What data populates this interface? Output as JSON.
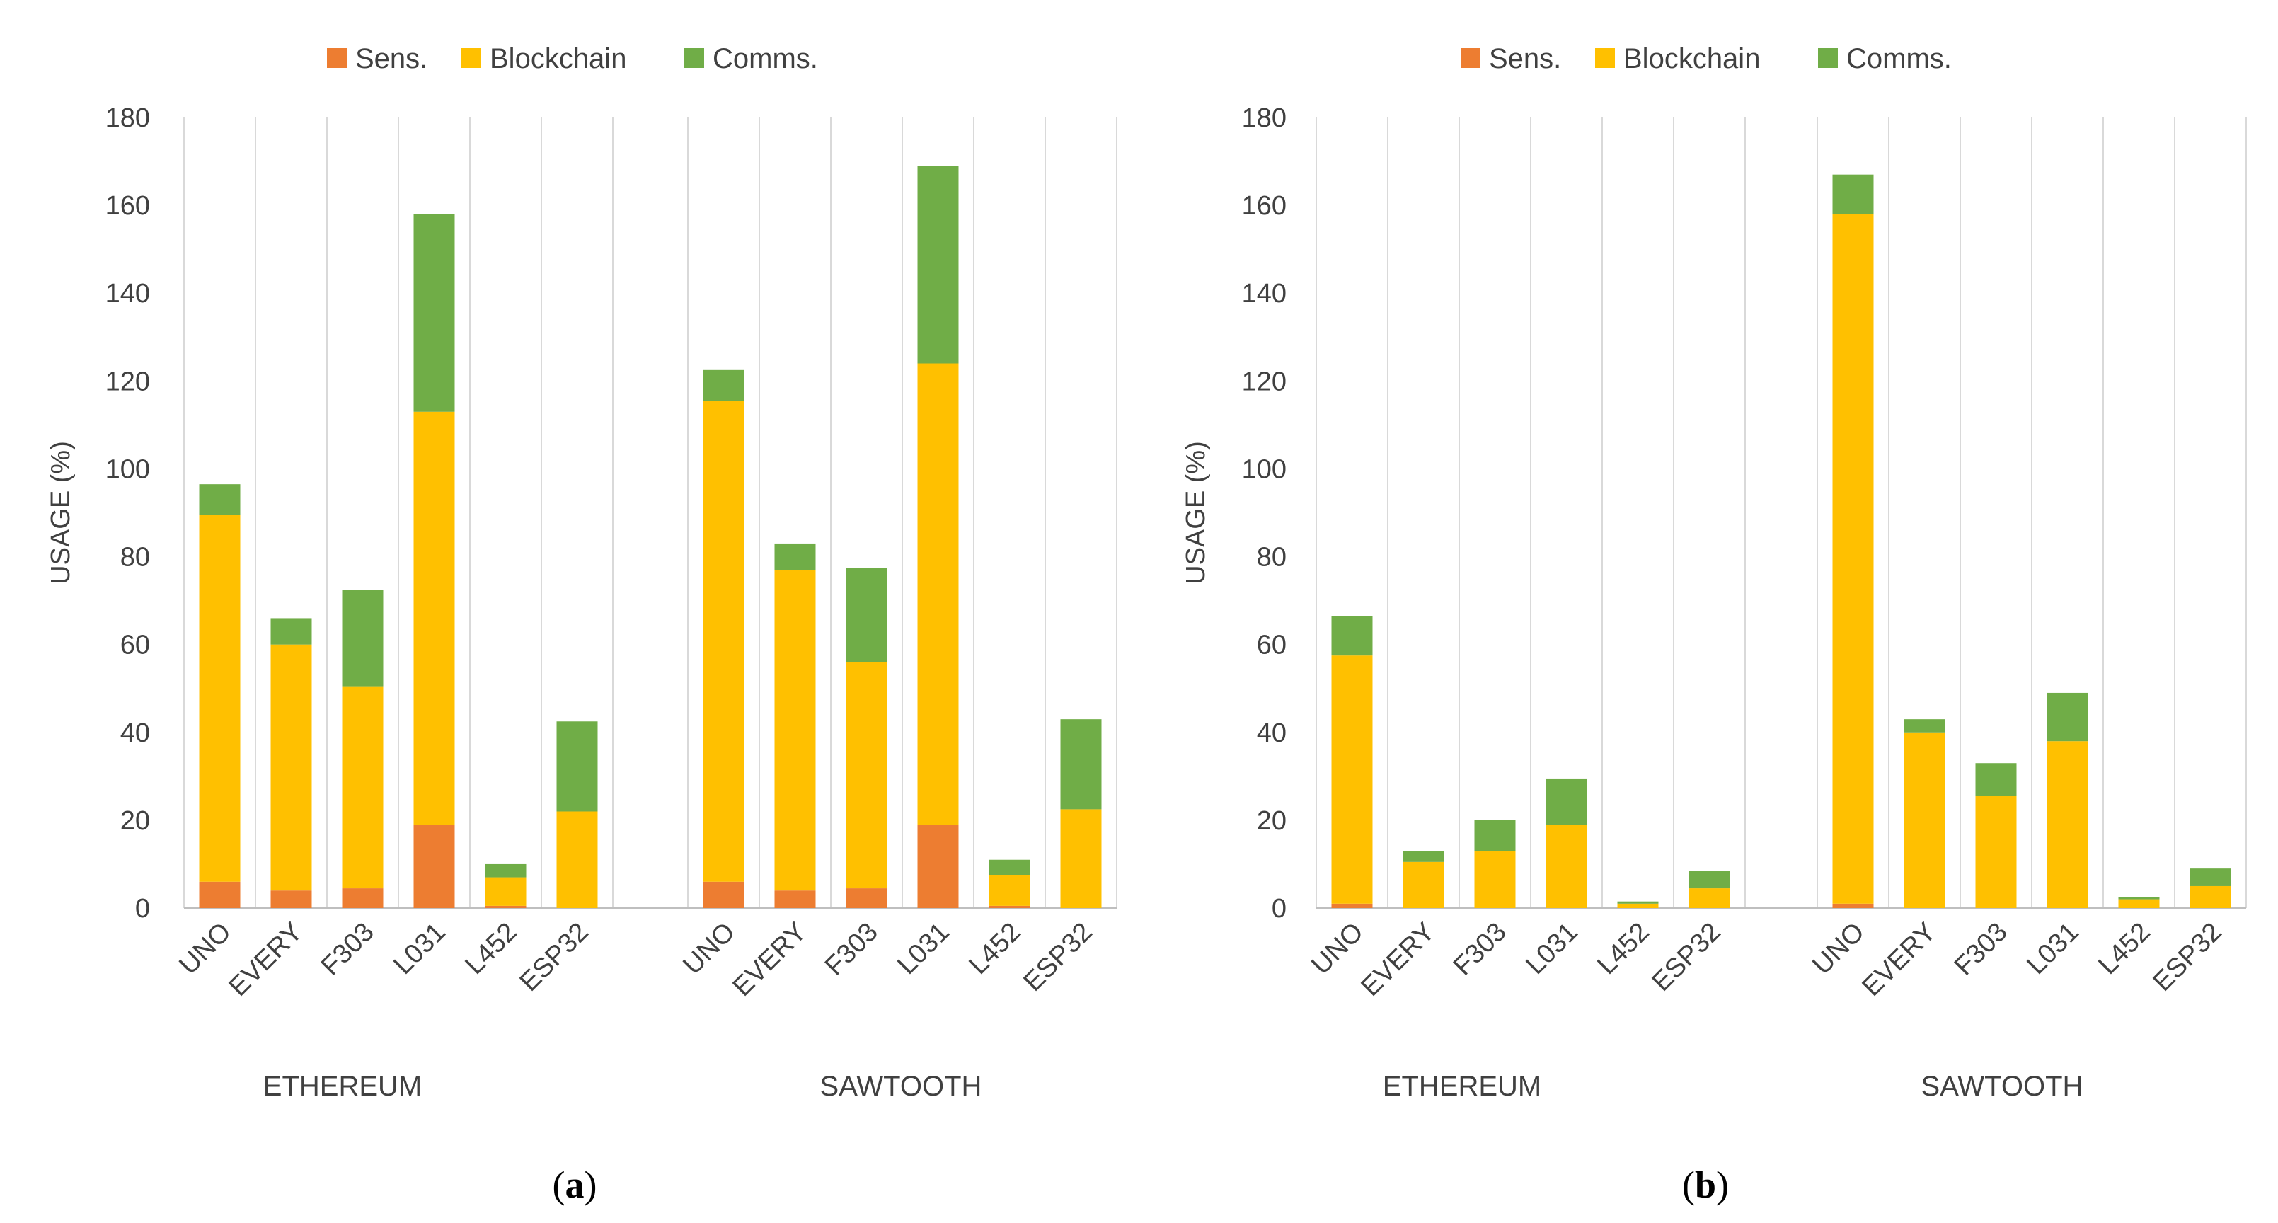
{
  "colors": {
    "sens": "#ED7D31",
    "blockchain": "#FFC000",
    "comms": "#70AD47",
    "grid": "#d9d9d9",
    "axis": "#bfbfbf",
    "text": "#404040"
  },
  "chart_data": [
    {
      "panel": "a",
      "caption_letter": "a",
      "type": "bar",
      "stacked": true,
      "ylabel": "USAGE (%)",
      "ylim": [
        0,
        180
      ],
      "yticks": [
        0,
        20,
        40,
        60,
        80,
        100,
        120,
        140,
        160,
        180
      ],
      "legend": [
        "Sens.",
        "Blockchain",
        "Comms."
      ],
      "groups": [
        {
          "name": "ETHEREUM",
          "categories": [
            "UNO",
            "EVERY",
            "F303",
            "L031",
            "L452",
            "ESP32"
          ],
          "sens": [
            6,
            4,
            4.5,
            19,
            0.5,
            0
          ],
          "blockchain": [
            83.5,
            56,
            46,
            94,
            6.5,
            22
          ],
          "comms": [
            7,
            6,
            22,
            45,
            3,
            20.5
          ]
        },
        {
          "name": "SAWTOOTH",
          "categories": [
            "UNO",
            "EVERY",
            "F303",
            "L031",
            "L452",
            "ESP32"
          ],
          "sens": [
            6,
            4,
            4.5,
            19,
            0.5,
            0
          ],
          "blockchain": [
            109.5,
            73,
            51.5,
            105,
            7,
            22.5
          ],
          "comms": [
            7,
            6,
            21.5,
            45,
            3.5,
            20.5
          ]
        }
      ]
    },
    {
      "panel": "b",
      "caption_letter": "b",
      "type": "bar",
      "stacked": true,
      "ylabel": "USAGE (%)",
      "ylim": [
        0,
        180
      ],
      "yticks": [
        0,
        20,
        40,
        60,
        80,
        100,
        120,
        140,
        160,
        180
      ],
      "legend": [
        "Sens.",
        "Blockchain",
        "Comms."
      ],
      "groups": [
        {
          "name": "ETHEREUM",
          "categories": [
            "UNO",
            "EVERY",
            "F303",
            "L031",
            "L452",
            "ESP32"
          ],
          "sens": [
            1,
            0,
            0,
            0,
            0,
            0
          ],
          "blockchain": [
            56.5,
            10.5,
            13,
            19,
            1,
            4.5
          ],
          "comms": [
            9,
            2.5,
            7,
            10.5,
            0.5,
            4
          ]
        },
        {
          "name": "SAWTOOTH",
          "categories": [
            "UNO",
            "EVERY",
            "F303",
            "L031",
            "L452",
            "ESP32"
          ],
          "sens": [
            1,
            0,
            0,
            0,
            0,
            0
          ],
          "blockchain": [
            157,
            40,
            25.5,
            38,
            2,
            5
          ],
          "comms": [
            9,
            3,
            7.5,
            11,
            0.5,
            4
          ]
        }
      ]
    }
  ]
}
